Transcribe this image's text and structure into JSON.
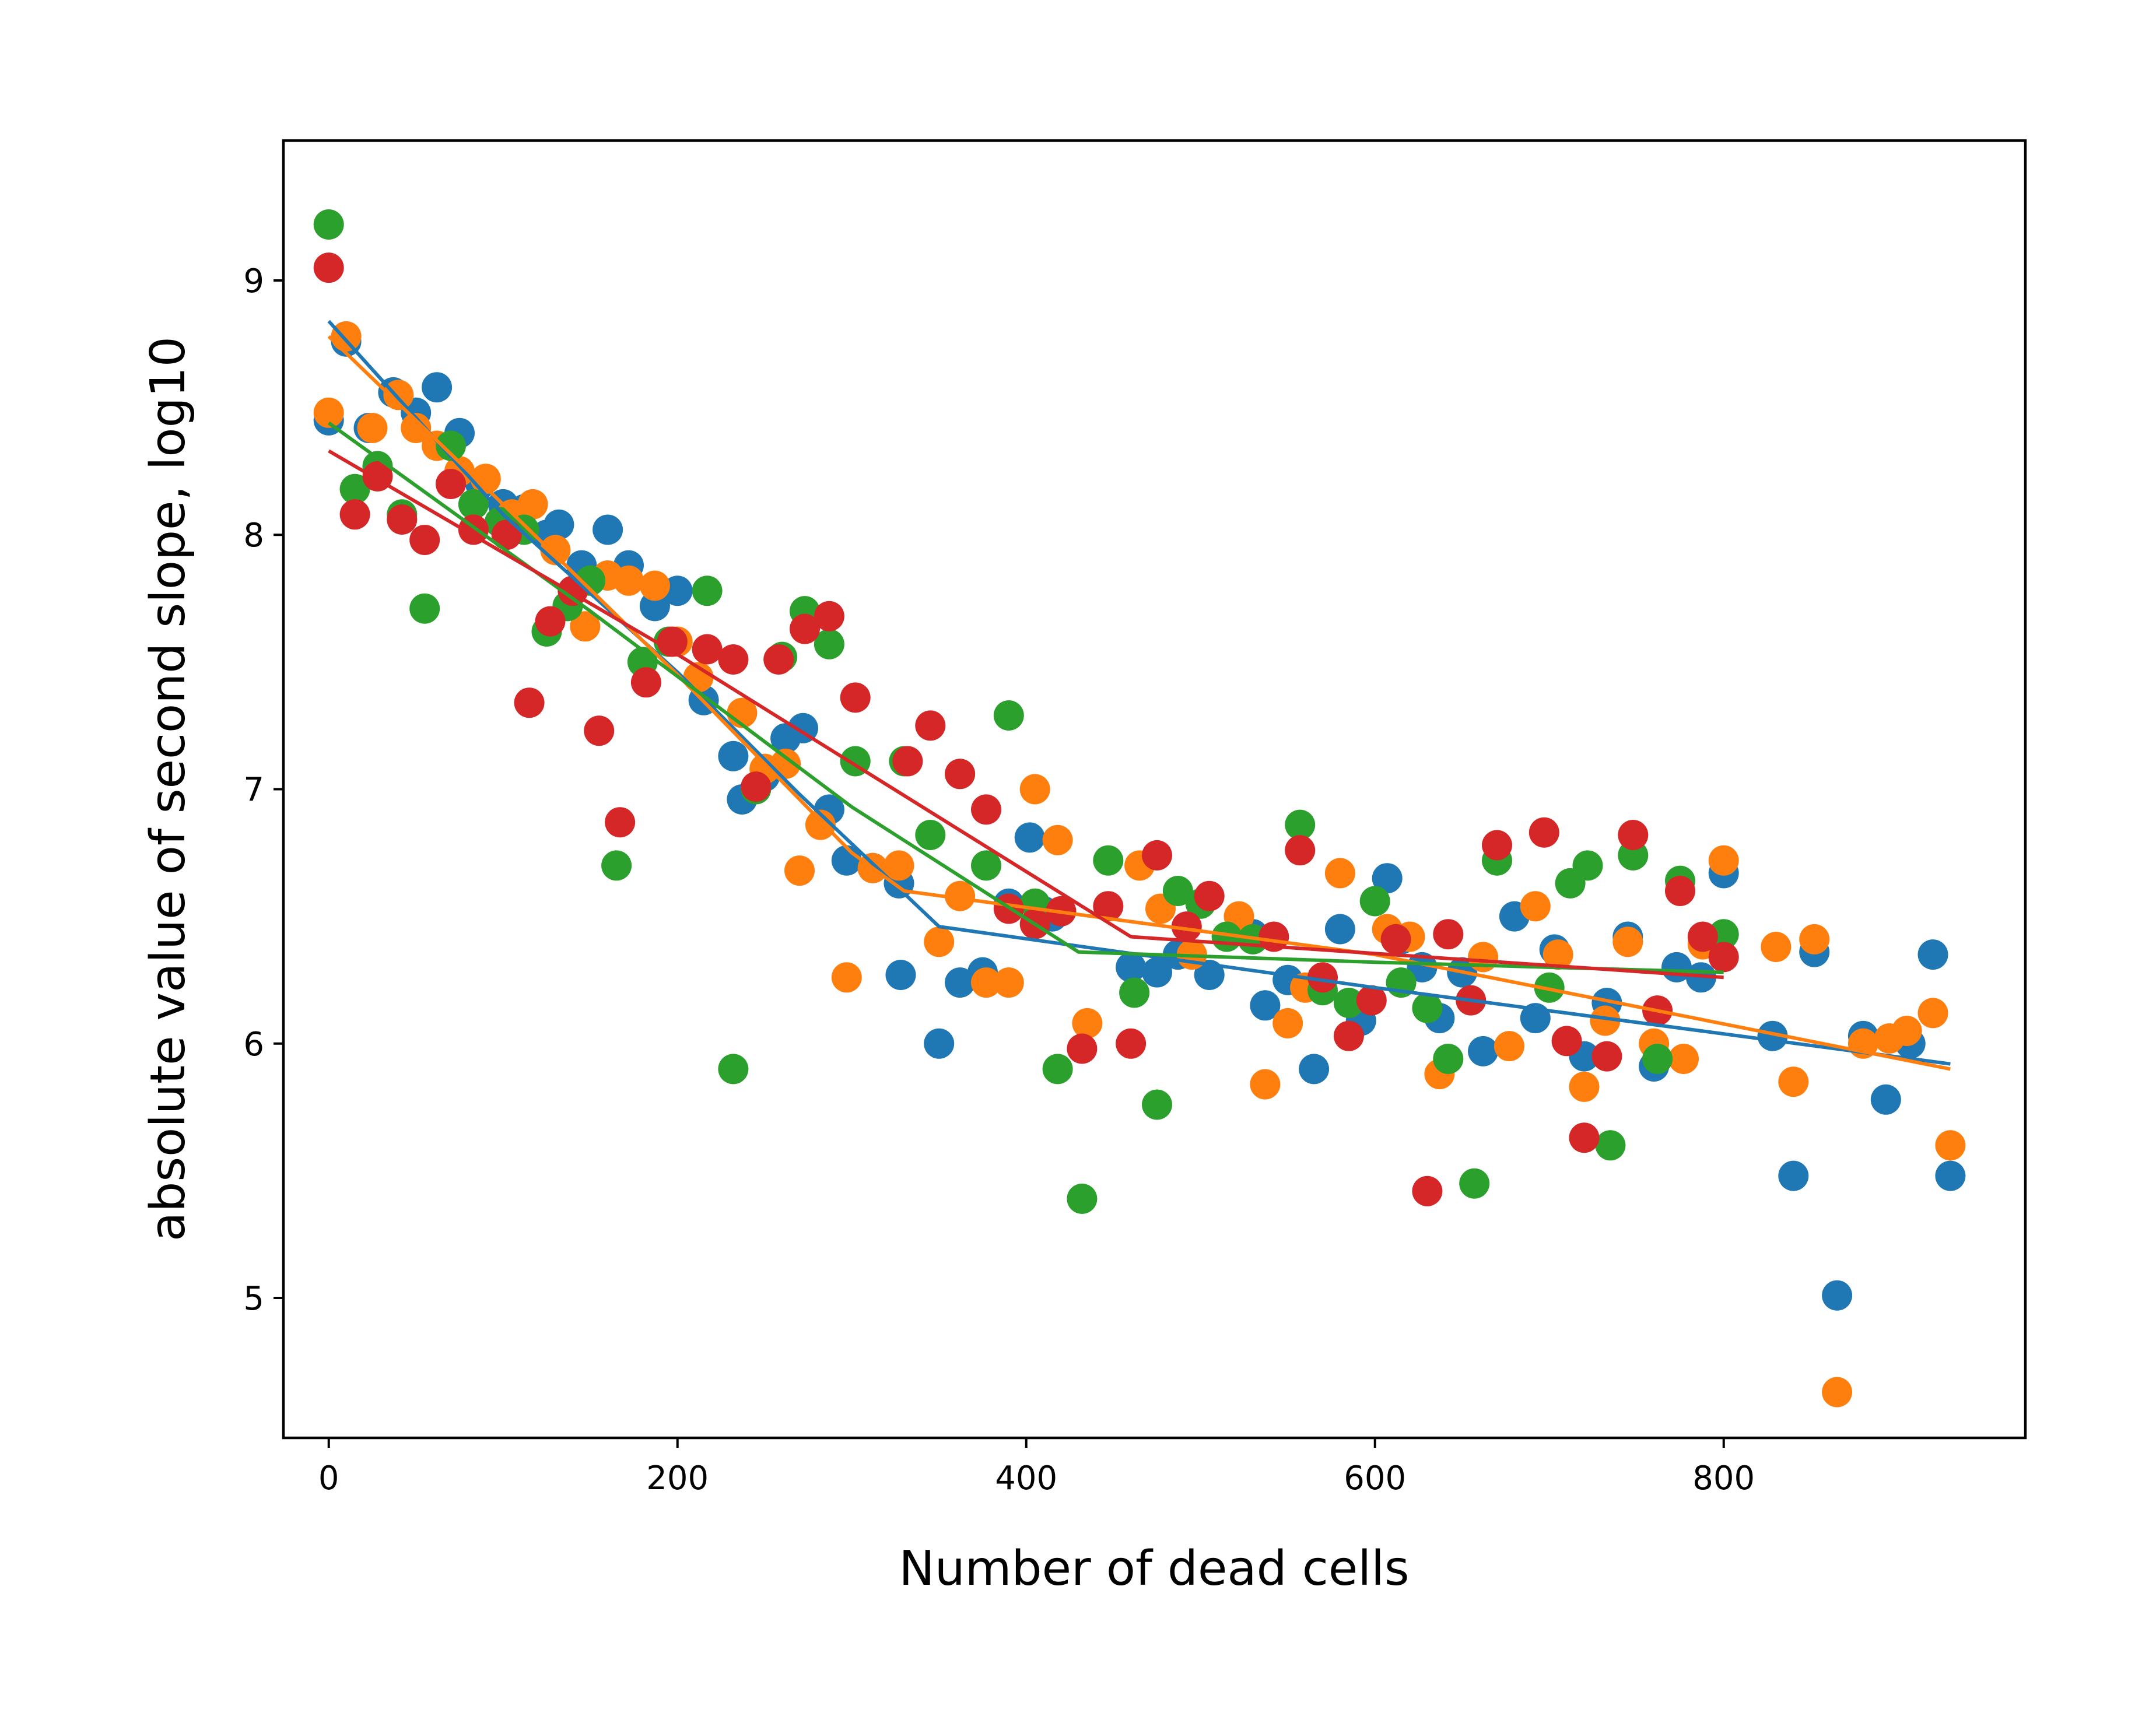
{
  "chart_data": {
    "type": "scatter",
    "title": "",
    "xlabel": "Number of dead cells",
    "ylabel": "absolute value of second slope, log10",
    "xlim": [
      -26,
      973
    ],
    "ylim": [
      4.45,
      9.55
    ],
    "x_ticks": [
      0,
      200,
      400,
      600,
      800
    ],
    "y_ticks": [
      5,
      6,
      7,
      8,
      9
    ],
    "x_tick_labels": [
      "0",
      "200",
      "400",
      "600",
      "800"
    ],
    "y_tick_labels": [
      "5",
      "6",
      "7",
      "8",
      "9"
    ],
    "grid": false,
    "legend": "none",
    "series": [
      {
        "color": "#1f77b4",
        "points": [
          [
            0,
            8.45
          ],
          [
            10,
            8.76
          ],
          [
            23,
            8.42
          ],
          [
            37,
            8.56
          ],
          [
            50,
            8.48
          ],
          [
            62,
            8.58
          ],
          [
            75,
            8.4
          ],
          [
            87,
            8.2
          ],
          [
            100,
            8.12
          ],
          [
            112,
            8.1
          ],
          [
            125,
            8.0
          ],
          [
            132,
            8.04
          ],
          [
            145,
            7.88
          ],
          [
            160,
            8.02
          ],
          [
            172,
            7.88
          ],
          [
            187,
            7.72
          ],
          [
            200,
            7.78
          ],
          [
            215,
            7.35
          ],
          [
            232,
            7.13
          ],
          [
            237,
            6.96
          ],
          [
            250,
            7.05
          ],
          [
            262,
            7.2
          ],
          [
            272,
            7.24
          ],
          [
            287,
            6.92
          ],
          [
            297,
            6.72
          ],
          [
            312,
            6.69
          ],
          [
            327,
            6.63
          ],
          [
            328,
            6.27
          ],
          [
            350,
            6.0
          ],
          [
            362,
            6.24
          ],
          [
            375,
            6.28
          ],
          [
            390,
            6.55
          ],
          [
            402,
            6.81
          ],
          [
            410,
            6.52
          ],
          [
            415,
            6.5
          ],
          [
            460,
            6.3
          ],
          [
            475,
            6.28
          ],
          [
            487,
            6.35
          ],
          [
            505,
            6.27
          ],
          [
            530,
            6.43
          ],
          [
            537,
            6.15
          ],
          [
            550,
            6.25
          ],
          [
            565,
            5.9
          ],
          [
            580,
            6.45
          ],
          [
            592,
            6.09
          ],
          [
            607,
            6.65
          ],
          [
            615,
            6.41
          ],
          [
            627,
            6.3
          ],
          [
            637,
            6.1
          ],
          [
            650,
            6.28
          ],
          [
            662,
            5.97
          ],
          [
            680,
            6.5
          ],
          [
            692,
            6.1
          ],
          [
            703,
            6.37
          ],
          [
            720,
            5.95
          ],
          [
            733,
            6.16
          ],
          [
            745,
            6.42
          ],
          [
            760,
            5.91
          ],
          [
            773,
            6.3
          ],
          [
            787,
            6.26
          ],
          [
            800,
            6.67
          ],
          [
            828,
            6.03
          ],
          [
            840,
            5.48
          ],
          [
            852,
            6.36
          ],
          [
            865,
            5.01
          ],
          [
            880,
            6.03
          ],
          [
            893,
            5.78
          ],
          [
            907,
            6.0
          ],
          [
            920,
            6.35
          ],
          [
            930,
            5.48
          ]
        ],
        "fit": [
          [
            0,
            8.84
          ],
          [
            100,
            8.08
          ],
          [
            200,
            7.46
          ],
          [
            270,
            6.98
          ],
          [
            350,
            6.46
          ],
          [
            600,
            6.22
          ],
          [
            930,
            5.92
          ]
        ]
      },
      {
        "color": "#ff7f0e",
        "points": [
          [
            0,
            8.48
          ],
          [
            10,
            8.78
          ],
          [
            25,
            8.42
          ],
          [
            40,
            8.55
          ],
          [
            50,
            8.42
          ],
          [
            62,
            8.35
          ],
          [
            75,
            8.25
          ],
          [
            90,
            8.22
          ],
          [
            105,
            8.08
          ],
          [
            117,
            8.12
          ],
          [
            130,
            7.94
          ],
          [
            147,
            7.64
          ],
          [
            160,
            7.84
          ],
          [
            172,
            7.82
          ],
          [
            187,
            7.8
          ],
          [
            200,
            7.58
          ],
          [
            212,
            7.44
          ],
          [
            237,
            7.3
          ],
          [
            250,
            7.08
          ],
          [
            262,
            7.1
          ],
          [
            270,
            6.68
          ],
          [
            282,
            6.86
          ],
          [
            297,
            6.26
          ],
          [
            312,
            6.69
          ],
          [
            327,
            6.7
          ],
          [
            350,
            6.4
          ],
          [
            362,
            6.58
          ],
          [
            377,
            6.24
          ],
          [
            390,
            6.24
          ],
          [
            405,
            7.0
          ],
          [
            418,
            6.8
          ],
          [
            435,
            6.08
          ],
          [
            465,
            6.7
          ],
          [
            477,
            6.53
          ],
          [
            495,
            6.35
          ],
          [
            522,
            6.5
          ],
          [
            537,
            5.84
          ],
          [
            550,
            6.08
          ],
          [
            560,
            6.22
          ],
          [
            580,
            6.67
          ],
          [
            607,
            6.45
          ],
          [
            620,
            6.42
          ],
          [
            637,
            5.88
          ],
          [
            662,
            6.34
          ],
          [
            677,
            5.99
          ],
          [
            692,
            6.54
          ],
          [
            705,
            6.35
          ],
          [
            720,
            5.83
          ],
          [
            732,
            6.09
          ],
          [
            745,
            6.4
          ],
          [
            760,
            6.0
          ],
          [
            777,
            5.94
          ],
          [
            788,
            6.39
          ],
          [
            800,
            6.72
          ],
          [
            830,
            6.38
          ],
          [
            840,
            5.85
          ],
          [
            852,
            6.41
          ],
          [
            865,
            4.63
          ],
          [
            880,
            6.0
          ],
          [
            895,
            6.02
          ],
          [
            905,
            6.05
          ],
          [
            920,
            6.12
          ],
          [
            930,
            5.6
          ]
        ],
        "fit": [
          [
            0,
            8.78
          ],
          [
            100,
            8.12
          ],
          [
            200,
            7.45
          ],
          [
            300,
            6.75
          ],
          [
            330,
            6.6
          ],
          [
            600,
            6.35
          ],
          [
            930,
            5.9
          ]
        ]
      },
      {
        "color": "#2ca02c",
        "points": [
          [
            0,
            9.22
          ],
          [
            15,
            8.18
          ],
          [
            28,
            8.27
          ],
          [
            42,
            8.08
          ],
          [
            55,
            7.71
          ],
          [
            70,
            8.35
          ],
          [
            83,
            8.12
          ],
          [
            98,
            8.05
          ],
          [
            112,
            8.02
          ],
          [
            125,
            7.62
          ],
          [
            137,
            7.72
          ],
          [
            150,
            7.82
          ],
          [
            165,
            6.7
          ],
          [
            180,
            7.5
          ],
          [
            195,
            7.58
          ],
          [
            217,
            7.78
          ],
          [
            232,
            5.9
          ],
          [
            245,
            7.0
          ],
          [
            260,
            7.52
          ],
          [
            273,
            7.7
          ],
          [
            287,
            7.57
          ],
          [
            302,
            7.11
          ],
          [
            330,
            7.11
          ],
          [
            345,
            6.82
          ],
          [
            362,
            7.06
          ],
          [
            377,
            6.7
          ],
          [
            390,
            7.29
          ],
          [
            405,
            6.55
          ],
          [
            418,
            5.9
          ],
          [
            432,
            5.39
          ],
          [
            447,
            6.72
          ],
          [
            462,
            6.2
          ],
          [
            475,
            5.76
          ],
          [
            487,
            6.6
          ],
          [
            500,
            6.55
          ],
          [
            515,
            6.42
          ],
          [
            530,
            6.41
          ],
          [
            557,
            6.86
          ],
          [
            570,
            6.21
          ],
          [
            585,
            6.16
          ],
          [
            600,
            6.56
          ],
          [
            615,
            6.24
          ],
          [
            630,
            6.14
          ],
          [
            642,
            5.94
          ],
          [
            657,
            5.45
          ],
          [
            670,
            6.72
          ],
          [
            700,
            6.22
          ],
          [
            712,
            6.63
          ],
          [
            722,
            6.7
          ],
          [
            735,
            5.6
          ],
          [
            748,
            6.74
          ],
          [
            762,
            5.94
          ],
          [
            775,
            6.64
          ],
          [
            800,
            6.43
          ]
        ],
        "fit": [
          [
            0,
            8.44
          ],
          [
            150,
            7.7
          ],
          [
            300,
            6.93
          ],
          [
            430,
            6.36
          ],
          [
            600,
            6.32
          ],
          [
            800,
            6.28
          ]
        ]
      },
      {
        "color": "#d62728",
        "points": [
          [
            0,
            9.05
          ],
          [
            15,
            8.08
          ],
          [
            28,
            8.23
          ],
          [
            42,
            8.06
          ],
          [
            55,
            7.98
          ],
          [
            70,
            8.2
          ],
          [
            83,
            8.02
          ],
          [
            102,
            8.0
          ],
          [
            115,
            7.34
          ],
          [
            127,
            7.66
          ],
          [
            140,
            7.78
          ],
          [
            155,
            7.23
          ],
          [
            167,
            6.87
          ],
          [
            182,
            7.42
          ],
          [
            197,
            7.58
          ],
          [
            217,
            7.55
          ],
          [
            232,
            7.51
          ],
          [
            245,
            7.01
          ],
          [
            258,
            7.51
          ],
          [
            273,
            7.63
          ],
          [
            287,
            7.68
          ],
          [
            302,
            7.36
          ],
          [
            332,
            7.11
          ],
          [
            345,
            7.25
          ],
          [
            362,
            7.06
          ],
          [
            377,
            6.92
          ],
          [
            390,
            6.53
          ],
          [
            405,
            6.47
          ],
          [
            420,
            6.52
          ],
          [
            432,
            5.98
          ],
          [
            447,
            6.54
          ],
          [
            460,
            6.0
          ],
          [
            475,
            6.74
          ],
          [
            492,
            6.46
          ],
          [
            505,
            6.58
          ],
          [
            542,
            6.42
          ],
          [
            557,
            6.76
          ],
          [
            570,
            6.26
          ],
          [
            585,
            6.03
          ],
          [
            598,
            6.17
          ],
          [
            612,
            6.41
          ],
          [
            630,
            5.42
          ],
          [
            642,
            6.43
          ],
          [
            655,
            6.17
          ],
          [
            670,
            6.78
          ],
          [
            697,
            6.83
          ],
          [
            710,
            6.01
          ],
          [
            720,
            5.63
          ],
          [
            733,
            5.95
          ],
          [
            748,
            6.82
          ],
          [
            762,
            6.13
          ],
          [
            775,
            6.6
          ],
          [
            788,
            6.42
          ],
          [
            800,
            6.34
          ]
        ],
        "fit": [
          [
            0,
            8.33
          ],
          [
            200,
            7.53
          ],
          [
            460,
            6.42
          ],
          [
            800,
            6.26
          ]
        ]
      }
    ]
  }
}
